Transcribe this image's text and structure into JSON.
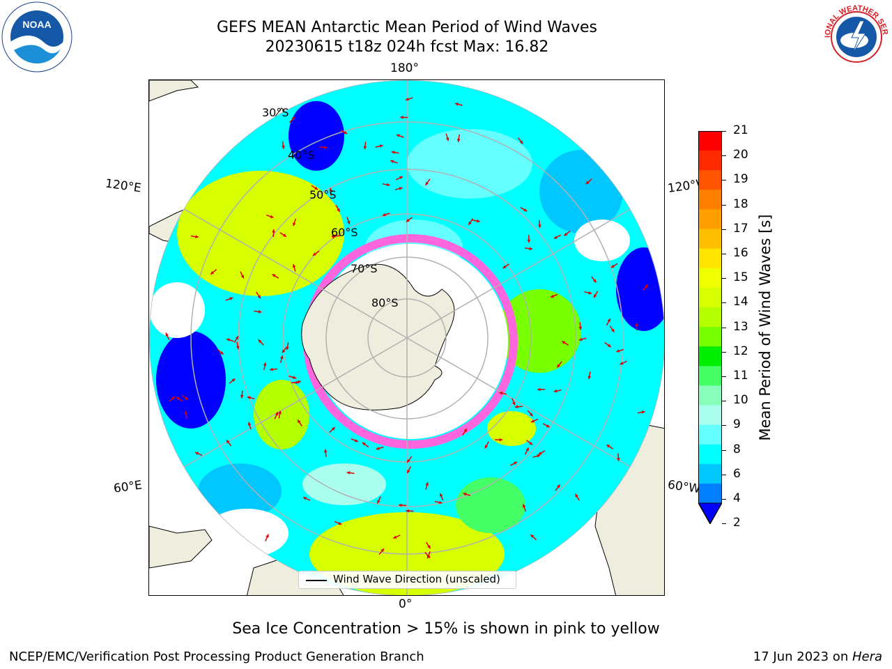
{
  "header": {
    "title_line1": "GEFS MEAN Antarctic Mean Period of Wind Waves",
    "title_line2": "20230615 t18z 024h fcst   Max: 16.82"
  },
  "logos": {
    "noaa": {
      "text": "NOAA"
    },
    "nws": {
      "text": "NATIONAL WEATHER SERVICE"
    }
  },
  "map": {
    "lon_labels": {
      "top": "180°",
      "bottom": "0°",
      "left_upper": "120°E",
      "left_lower": "60°E",
      "right_upper": "120°W",
      "right_lower": "60°W"
    },
    "lat_labels": [
      "30°S",
      "40°S",
      "50°S",
      "60°S",
      "70°S",
      "80°S"
    ],
    "legend": "Wind Wave Direction (unscaled)"
  },
  "colorbar": {
    "label": "Mean Period of Wind Waves [s]",
    "ticks": [
      "21",
      "20",
      "19",
      "18",
      "17",
      "16",
      "15",
      "14",
      "13",
      "12",
      "11",
      "10",
      "9",
      "8",
      "6",
      "4",
      "2"
    ],
    "colors": [
      "#ff0000",
      "#ff2a00",
      "#ff5500",
      "#ff7f00",
      "#ff9f00",
      "#ffbf00",
      "#ffe500",
      "#f0ff00",
      "#d8ff00",
      "#b4ff00",
      "#78ff00",
      "#00ee00",
      "#44ff66",
      "#88ffbb",
      "#aaffee",
      "#66ffff",
      "#00ffff",
      "#00c8ff",
      "#0080ff",
      "#0000ff"
    ]
  },
  "footer": {
    "ice_note": "Sea Ice Concentration > 15% is shown in pink to yellow",
    "credit": "NCEP/EMC/Verification Post Processing Product Generation Branch",
    "date": "17 Jun 2023 on ",
    "machine": "Hera"
  }
}
